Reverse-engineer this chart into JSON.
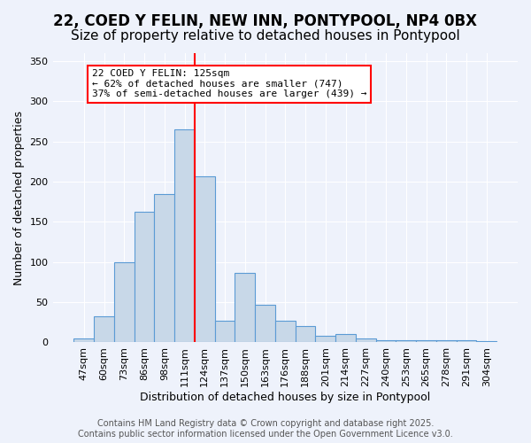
{
  "title_line1": "22, COED Y FELIN, NEW INN, PONTYPOOL, NP4 0BX",
  "title_line2": "Size of property relative to detached houses in Pontypool",
  "xlabel": "Distribution of detached houses by size in Pontypool",
  "ylabel": "Number of detached properties",
  "categories": [
    "47sqm",
    "60sqm",
    "73sqm",
    "86sqm",
    "98sqm",
    "111sqm",
    "124sqm",
    "137sqm",
    "150sqm",
    "163sqm",
    "176sqm",
    "188sqm",
    "201sqm",
    "214sqm",
    "227sqm",
    "240sqm",
    "253sqm",
    "265sqm",
    "278sqm",
    "291sqm",
    "304sqm"
  ],
  "values": [
    5,
    33,
    100,
    163,
    185,
    265,
    207,
    27,
    87,
    47,
    27,
    20,
    8,
    10,
    5,
    3,
    3,
    3,
    3,
    3,
    2
  ],
  "bar_color": "#c8d8e8",
  "bar_edge_color": "#5b9bd5",
  "vline_x_idx": 6,
  "vline_color": "red",
  "annotation_text": "22 COED Y FELIN: 125sqm\n← 62% of detached houses are smaller (747)\n37% of semi-detached houses are larger (439) →",
  "annotation_box_color": "white",
  "annotation_box_edge_color": "red",
  "ylim": [
    0,
    360
  ],
  "yticks": [
    0,
    50,
    100,
    150,
    200,
    250,
    300,
    350
  ],
  "footer_text": "Contains HM Land Registry data © Crown copyright and database right 2025.\nContains public sector information licensed under the Open Government Licence v3.0.",
  "background_color": "#eef2fb",
  "grid_color": "#ffffff",
  "title_fontsize": 12,
  "subtitle_fontsize": 11,
  "axis_label_fontsize": 9,
  "tick_fontsize": 8,
  "annotation_fontsize": 8,
  "footer_fontsize": 7
}
